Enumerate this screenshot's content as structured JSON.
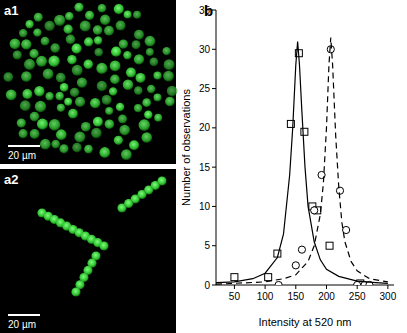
{
  "panels": [
    {
      "label": "a1",
      "scale_bar": "20 µm"
    },
    {
      "label": "a2",
      "scale_bar": "20 µm"
    }
  ],
  "chart_data": {
    "type": "scatter",
    "title": "b",
    "x_label": "Intensity at 520 nm",
    "y_label": "Number of observations",
    "xlim": [
      20,
      310
    ],
    "ylim": [
      0,
      35
    ],
    "xticks": [
      50,
      100,
      150,
      200,
      250,
      300
    ],
    "yticks": [
      0,
      5,
      10,
      15,
      20,
      25,
      30,
      35
    ],
    "grid": false,
    "series": [
      {
        "type": "scatter",
        "marker": "square",
        "color": "#000000",
        "x": [
          50,
          105,
          120,
          142,
          155,
          164,
          177,
          185,
          205,
          255
        ],
        "values": [
          1,
          1,
          4,
          20.5,
          29.5,
          19.5,
          10,
          9.5,
          5,
          0.2
        ]
      },
      {
        "type": "scatter",
        "marker": "circle",
        "color": "#000000",
        "x": [
          122,
          150,
          160,
          180,
          192,
          207,
          222,
          232,
          250,
          262,
          270
        ],
        "values": [
          0,
          2.5,
          4.5,
          9.5,
          14,
          30,
          12,
          7,
          0,
          0,
          0
        ]
      },
      {
        "type": "line",
        "line_style": "solid",
        "color": "#000000",
        "x": [
          20,
          50,
          80,
          100,
          120,
          130,
          140,
          145,
          150,
          153,
          156,
          160,
          165,
          170,
          180,
          190,
          200,
          220,
          250,
          280,
          300
        ],
        "values": [
          0.3,
          0.4,
          0.8,
          1.5,
          3.5,
          6.5,
          14,
          20,
          28,
          31,
          28,
          22,
          15,
          10,
          5.5,
          3.2,
          2,
          1.1,
          0.5,
          0.3,
          0.2
        ]
      },
      {
        "type": "line",
        "line_style": "dashed",
        "color": "#000000",
        "x": [
          20,
          100,
          130,
          150,
          170,
          180,
          190,
          195,
          200,
          204,
          207,
          210,
          215,
          220,
          225,
          230,
          240,
          250,
          270,
          300
        ],
        "values": [
          0.1,
          0.4,
          0.8,
          1.3,
          3,
          5,
          9,
          13,
          20,
          28,
          31.5,
          28,
          19,
          12.5,
          8,
          5.5,
          3,
          1.8,
          0.8,
          0.4
        ]
      }
    ]
  }
}
